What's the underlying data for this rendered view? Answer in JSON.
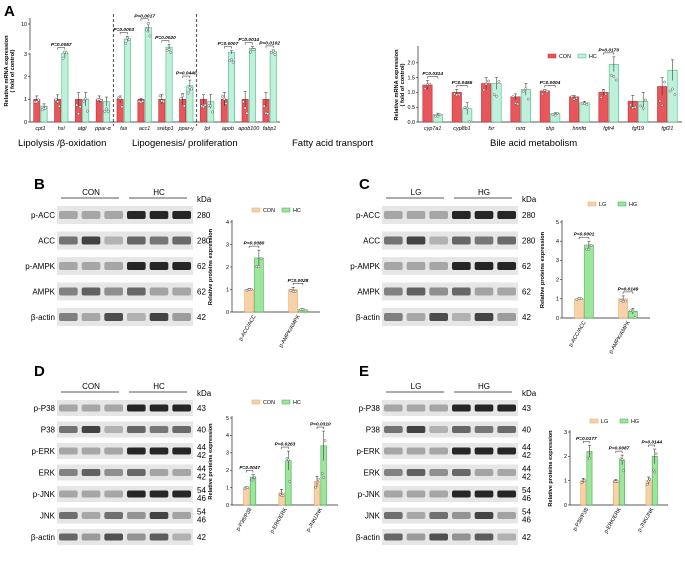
{
  "colors": {
    "con": "#e8555a",
    "hc": "#bff0da",
    "hcStroke": "#43b888",
    "lg": "#f7d2a8",
    "lgStroke": "#e8a563",
    "hg": "#9ce59d",
    "hgStroke": "#3fae48",
    "bg": "#ffffff"
  },
  "panels": {
    "A": "A",
    "B": "B",
    "C": "C",
    "D": "D",
    "E": "E"
  },
  "units": {
    "kda": "kDa"
  },
  "chart_data": [
    {
      "id": "A1",
      "type": "bar",
      "ylabel_line1": "Relative mRNA expression",
      "ylabel_line2": "( fold of control)",
      "ylim": [
        0,
        12
      ],
      "yticks": [
        "0",
        "1",
        "2",
        "3",
        "10"
      ],
      "categories": [
        "cpt1",
        "hsl",
        "atgl",
        "ppar-α",
        "fas",
        "acc1",
        "srebp1",
        "ppar-γ",
        "lpl",
        "apob",
        "apob100",
        "fabp1"
      ],
      "series": [
        {
          "name": "CON",
          "values": [
            1.0,
            1.0,
            1.0,
            1.0,
            1.0,
            1.0,
            1.0,
            1.0,
            1.0,
            1.0,
            1.0,
            1.0
          ],
          "errors": [
            0.15,
            0.2,
            0.3,
            0.15,
            0.15,
            0.05,
            0.2,
            0.25,
            0.2,
            0.3,
            0.35,
            0.3
          ]
        },
        {
          "name": "HC",
          "values": [
            0.7,
            3.2,
            1.0,
            0.9,
            6.5,
            9.2,
            4.6,
            1.6,
            0.9,
            3.4,
            4.3,
            3.6
          ],
          "errors": [
            0.1,
            0.35,
            0.3,
            0.2,
            0.6,
            1.2,
            0.6,
            0.25,
            0.3,
            0.4,
            0.4,
            0.35
          ]
        }
      ],
      "annotations": [
        {
          "cat": 1,
          "text": "P=0.0057"
        },
        {
          "cat": 4,
          "text": "P=0.0003"
        },
        {
          "cat": 5,
          "text": "P=0.0017"
        },
        {
          "cat": 6,
          "text": "P=0.0020"
        },
        {
          "cat": 7,
          "text": "P=0.0440"
        },
        {
          "cat": 9,
          "text": "P=0.0007"
        },
        {
          "cat": 10,
          "text": "P=0.0014"
        },
        {
          "cat": 11,
          "text": "P=0.0102"
        }
      ],
      "groups": [
        {
          "label": "Lipolysis /β-oxidation"
        },
        {
          "label": "Lipogenesis/ proliferation"
        },
        {
          "label": "Fatty acid transport"
        }
      ]
    },
    {
      "id": "A2",
      "type": "bar",
      "ylabel_line1": "Relative mRNA expression",
      "ylabel_line2": "( fold of control)",
      "ylim": [
        0,
        2.5
      ],
      "yticks": [
        "0.0",
        "0.5",
        "1.0",
        "1.5",
        "2.0"
      ],
      "categories": [
        "cyp7a1",
        "cyp8b1",
        "fxr",
        "rxrα",
        "shp",
        "hnnfα",
        "fgfr4",
        "fgf19",
        "fgf21"
      ],
      "legend": [
        "CON",
        "HC"
      ],
      "series": [
        {
          "name": "CON",
          "values": [
            1.25,
            1.0,
            1.3,
            0.85,
            1.05,
            0.85,
            1.0,
            0.7,
            1.2
          ],
          "errors": [
            0.15,
            0.1,
            0.2,
            0.1,
            0.05,
            0.05,
            0.1,
            0.2,
            0.3
          ]
        },
        {
          "name": "HC",
          "values": [
            0.25,
            0.45,
            1.3,
            1.1,
            0.28,
            0.65,
            1.95,
            0.7,
            1.75
          ],
          "errors": [
            0.05,
            0.2,
            0.2,
            0.2,
            0.03,
            0.05,
            0.25,
            0.3,
            0.35
          ]
        }
      ],
      "annotations": [
        {
          "cat": 0,
          "text": "P=0.0314"
        },
        {
          "cat": 1,
          "text": "P=0.0455"
        },
        {
          "cat": 4,
          "text": "P=0.0004"
        },
        {
          "cat": 6,
          "text": "P=0.0170"
        }
      ],
      "groups": [
        {
          "label": "Bile acid metabolism"
        }
      ]
    },
    {
      "id": "B",
      "type": "bar",
      "ylabel": "Relative proteins expression",
      "ylim": [
        0,
        4
      ],
      "yticks": [
        "0",
        "1",
        "2",
        "3",
        "4"
      ],
      "categories": [
        "p-ACC/ACC",
        "p-AMPK/AMPK"
      ],
      "legend": [
        "CON",
        "HC"
      ],
      "series": [
        {
          "name": "CON",
          "values": [
            1.0,
            1.0
          ],
          "errors": [
            0.05,
            0.1
          ]
        },
        {
          "name": "HC",
          "values": [
            2.4,
            0.1
          ],
          "errors": [
            0.35,
            0.05
          ]
        }
      ],
      "annotations": [
        {
          "cat": 0,
          "text": "P=0.0080"
        },
        {
          "cat": 1,
          "text": "P=0.0028"
        }
      ]
    },
    {
      "id": "C",
      "type": "bar",
      "ylabel": "Relative proteins expression",
      "ylim": [
        0,
        5
      ],
      "yticks": [
        "0",
        "1",
        "2",
        "3",
        "4",
        "5"
      ],
      "categories": [
        "p-ACC/ACC",
        "p-AMPK/AMPK"
      ],
      "legend": [
        "LG",
        "HG"
      ],
      "series": [
        {
          "name": "LG",
          "values": [
            1.0,
            1.0
          ],
          "errors": [
            0.05,
            0.15
          ]
        },
        {
          "name": "HG",
          "values": [
            3.8,
            0.35
          ],
          "errors": [
            0.2,
            0.15
          ]
        }
      ],
      "annotations": [
        {
          "cat": 0,
          "text": "P<0.0001"
        },
        {
          "cat": 1,
          "text": "P=0.0149"
        }
      ]
    },
    {
      "id": "D",
      "type": "bar",
      "ylabel": "Relative proteins expression",
      "ylim": [
        0,
        5
      ],
      "yticks": [
        "0",
        "1",
        "2",
        "3",
        "4",
        "5"
      ],
      "categories": [
        "p-P38/P38",
        "p-ERK/ERK",
        "p-JNK/JNK"
      ],
      "legend": [
        "CON",
        "HC"
      ],
      "series": [
        {
          "name": "CON",
          "values": [
            1.0,
            0.7,
            1.35
          ],
          "errors": [
            0.05,
            0.2,
            0.3
          ]
        },
        {
          "name": "HC",
          "values": [
            1.6,
            2.55,
            3.4
          ],
          "errors": [
            0.15,
            0.55,
            0.85
          ]
        }
      ],
      "annotations": [
        {
          "cat": 0,
          "text": "P=0.0047"
        },
        {
          "cat": 1,
          "text": "P=0.0263"
        },
        {
          "cat": 2,
          "text": "P=0.0310"
        }
      ]
    },
    {
      "id": "E",
      "type": "bar",
      "ylabel": "Relative proteins expression",
      "ylim": [
        0,
        3
      ],
      "yticks": [
        "0",
        "1",
        "2",
        "3"
      ],
      "categories": [
        "p-P38/P38",
        "p-ERK/ERK",
        "p-JNK/JNK"
      ],
      "legend": [
        "LG",
        "HG"
      ],
      "series": [
        {
          "name": "LG",
          "values": [
            1.0,
            1.0,
            1.0
          ],
          "errors": [
            0.1,
            0.05,
            0.15
          ]
        },
        {
          "name": "HG",
          "values": [
            2.2,
            1.85,
            2.0
          ],
          "errors": [
            0.25,
            0.2,
            0.3
          ]
        }
      ],
      "annotations": [
        {
          "cat": 0,
          "text": "P=0.0177"
        },
        {
          "cat": 1,
          "text": "P=0.0087"
        },
        {
          "cat": 2,
          "text": "P=0.0144"
        }
      ]
    }
  ],
  "blots": {
    "B": {
      "groups": [
        "CON",
        "HC"
      ],
      "rows": [
        {
          "label": "p-ACC",
          "kda": "280"
        },
        {
          "label": "ACC",
          "kda": "280"
        },
        {
          "label": "p-AMPK",
          "kda": "62"
        },
        {
          "label": "AMPK",
          "kda": "62"
        },
        {
          "label": "β-actin",
          "kda": "42"
        }
      ]
    },
    "C": {
      "groups": [
        "LG",
        "HG"
      ],
      "rows": [
        {
          "label": "p-ACC",
          "kda": "280"
        },
        {
          "label": "ACC",
          "kda": "280"
        },
        {
          "label": "p-AMPK",
          "kda": "62"
        },
        {
          "label": "AMPK",
          "kda": "62"
        },
        {
          "label": "β-actin",
          "kda": "42"
        }
      ]
    },
    "D": {
      "groups": [
        "CON",
        "HC"
      ],
      "rows": [
        {
          "label": "p-P38",
          "kda": "43"
        },
        {
          "label": "P38",
          "kda": "40"
        },
        {
          "label": "p-ERK",
          "kda": "44\n42"
        },
        {
          "label": "ERK",
          "kda": "44\n42"
        },
        {
          "label": "p-JNK",
          "kda": "54\n46"
        },
        {
          "label": "JNK",
          "kda": "54\n46"
        },
        {
          "label": "β-actin",
          "kda": "42"
        }
      ]
    },
    "E": {
      "groups": [
        "LG",
        "HG"
      ],
      "rows": [
        {
          "label": "p-P38",
          "kda": "43"
        },
        {
          "label": "P38",
          "kda": "40"
        },
        {
          "label": "p-ERK",
          "kda": "44\n42"
        },
        {
          "label": "ERK",
          "kda": "44\n42"
        },
        {
          "label": "p-JNK",
          "kda": "54\n46"
        },
        {
          "label": "JNK",
          "kda": "54\n46"
        },
        {
          "label": "β-actin",
          "kda": "42"
        }
      ]
    }
  }
}
